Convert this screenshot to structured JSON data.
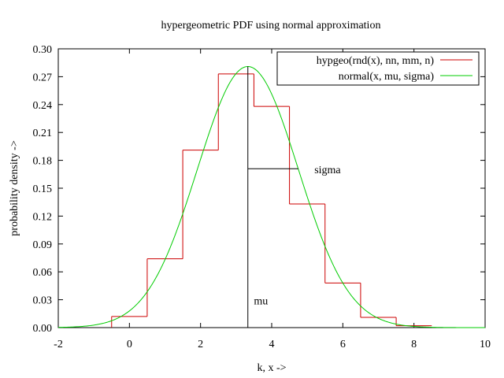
{
  "chart_data": {
    "type": "line",
    "title": "hypergeometric PDF using normal approximation",
    "xlabel": "k, x ->",
    "ylabel": "probability density ->",
    "xlim": [
      -2,
      10
    ],
    "ylim": [
      0,
      0.3
    ],
    "xticks": [
      -2,
      0,
      2,
      4,
      6,
      8,
      10
    ],
    "xtick_labels": [
      "-2",
      "0",
      "2",
      "4",
      "6",
      "8",
      "10"
    ],
    "yticks": [
      0.0,
      0.03,
      0.06,
      0.09,
      0.12,
      0.15,
      0.18,
      0.21,
      0.24,
      0.27,
      0.3
    ],
    "ytick_labels": [
      "0.00",
      "0.03",
      "0.06",
      "0.09",
      "0.12",
      "0.15",
      "0.18",
      "0.21",
      "0.24",
      "0.27",
      "0.30"
    ],
    "grid": false,
    "legend_position": "top-right",
    "series": [
      {
        "name": "hypgeo(rnd(x), nn, mm, n)",
        "style": "steps",
        "color": "#cc0000",
        "k": [
          0,
          1,
          2,
          3,
          4,
          5,
          6,
          7,
          8
        ],
        "values": [
          0.012,
          0.074,
          0.191,
          0.273,
          0.238,
          0.133,
          0.048,
          0.011,
          0.002
        ]
      },
      {
        "name": "normal(x, mu, sigma)",
        "style": "curve",
        "color": "#00cc00",
        "mu": 3.33,
        "sigma": 1.42
      }
    ],
    "annotations": [
      {
        "label": "mu",
        "x": 3.33,
        "y_from": 0,
        "y_to": 0.281,
        "text_x": 3.5,
        "text_y": 0.025
      },
      {
        "label": "sigma",
        "x_from": 3.33,
        "x_to": 4.75,
        "y": 0.171,
        "text_x": 5.2,
        "text_y": 0.166
      }
    ]
  }
}
